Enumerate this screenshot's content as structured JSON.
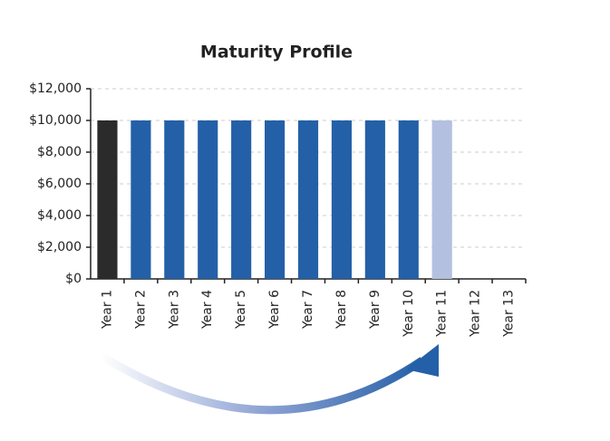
{
  "chart_data": {
    "type": "bar",
    "title": "Maturity Profile",
    "categories": [
      "Year 1",
      "Year 2",
      "Year 3",
      "Year 4",
      "Year 5",
      "Year 6",
      "Year 7",
      "Year 8",
      "Year 9",
      "Year 10",
      "Year 11",
      "Year 12",
      "Year 13"
    ],
    "values": [
      10000,
      10000,
      10000,
      10000,
      10000,
      10000,
      10000,
      10000,
      10000,
      10000,
      10000,
      null,
      null
    ],
    "colors": [
      "#2b2b2b",
      "#2460a7",
      "#2460a7",
      "#2460a7",
      "#2460a7",
      "#2460a7",
      "#2460a7",
      "#2460a7",
      "#2460a7",
      "#2460a7",
      "#b3c0e0",
      null,
      null
    ],
    "ylim": [
      0,
      12000
    ],
    "yticks": [
      {
        "value": 0,
        "label": "$0"
      },
      {
        "value": 2000,
        "label": "$2,000"
      },
      {
        "value": 4000,
        "label": "$4,000"
      },
      {
        "value": 6000,
        "label": "$6,000"
      },
      {
        "value": 8000,
        "label": "$8,000"
      },
      {
        "value": 10000,
        "label": "$10,000"
      },
      {
        "value": 12000,
        "label": "$12,000"
      }
    ],
    "grid": true
  }
}
